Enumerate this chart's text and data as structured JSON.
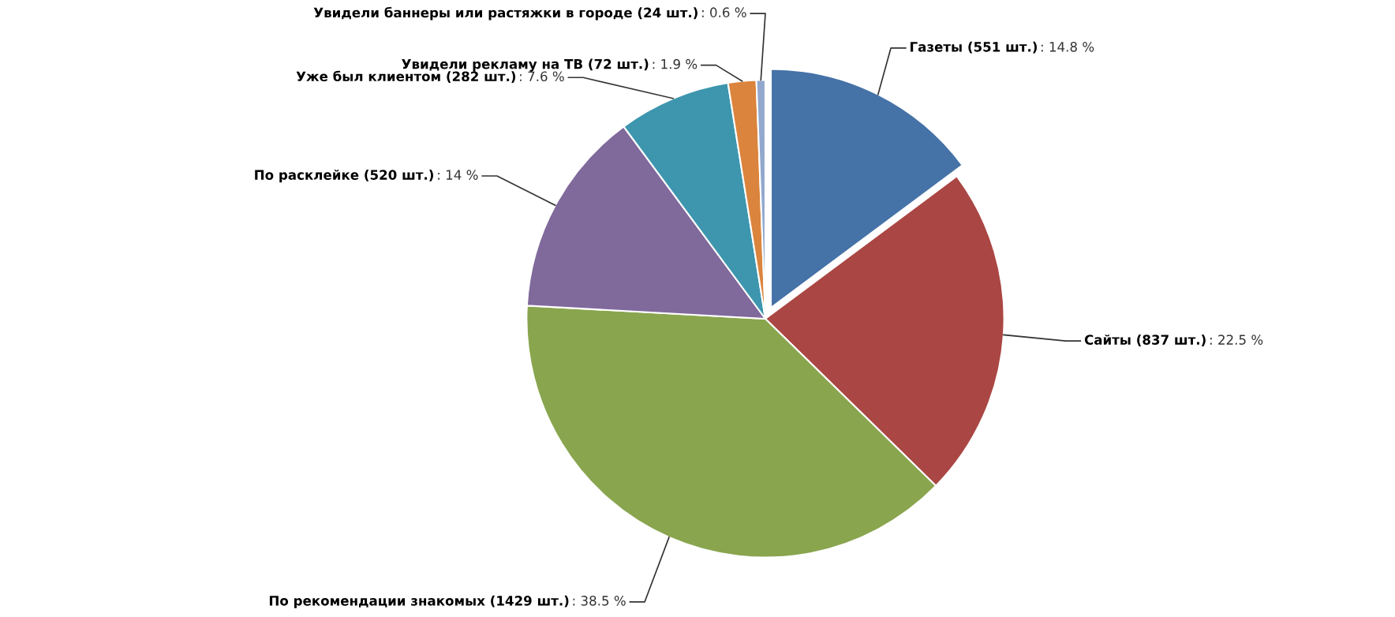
{
  "chart_data": {
    "type": "pie",
    "categories": [
      "Газеты (551 шт.)",
      "Сайты (837 шт.)",
      "По рекомендации знакомых (1429 шт.)",
      "По расклейке (520 шт.)",
      "Уже был клиентом (282 шт.)",
      "Увидели рекламу на ТВ (72 шт.)",
      "Увидели баннеры или растяжки в городе (24 шт.)"
    ],
    "values": [
      14.8,
      22.5,
      38.5,
      14,
      7.6,
      1.9,
      0.6
    ],
    "colors": [
      "#4572a7",
      "#aa4643",
      "#89a54e",
      "#80699b",
      "#3d96ae",
      "#db843d",
      "#92a8cd"
    ],
    "value_labels": [
      ": 14.8 %",
      ": 22.5 %",
      ": 38.5 %",
      ": 14 %",
      ": 7.6 %",
      ": 1.9 %",
      ": 0.6 %"
    ]
  }
}
